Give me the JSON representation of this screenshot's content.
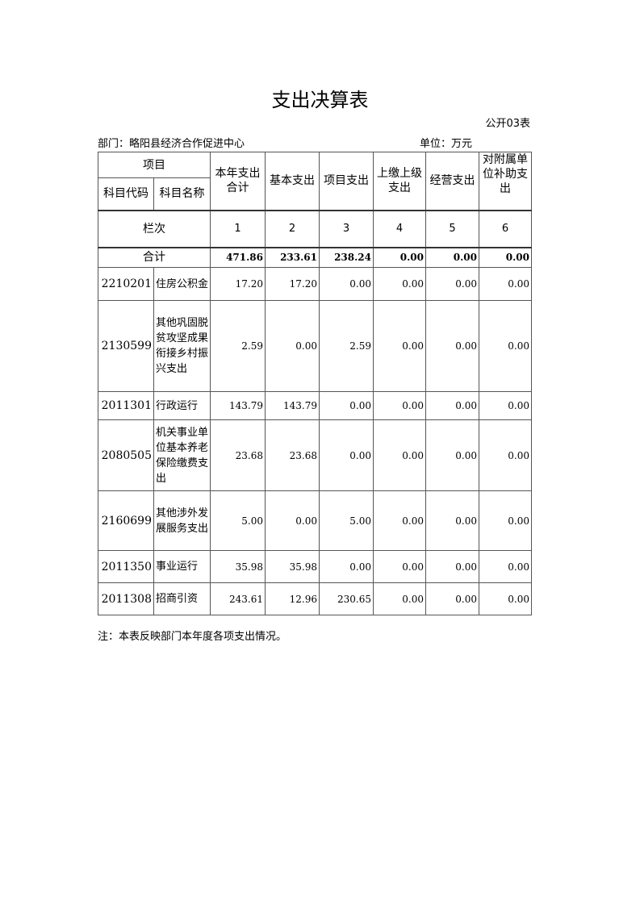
{
  "title": "支出决算表",
  "form_code": "公开03表",
  "department": "部门：略阳县经济合作促进中心",
  "unit": "单位：万元",
  "headers": {
    "item": "项目",
    "code": "科目代码",
    "name": "科目名称",
    "total": "本年支出合计",
    "basic": "基本支出",
    "project": "项目支出",
    "upper": "上缴上级支出",
    "business": "经营支出",
    "subsidy": "对附属单位补助支出"
  },
  "column_row": {
    "label": "栏次",
    "nums": [
      "1",
      "2",
      "3",
      "4",
      "5",
      "6"
    ]
  },
  "total_row": {
    "label": "合计",
    "values": [
      "471.86",
      "233.61",
      "238.24",
      "0.00",
      "0.00",
      "0.00"
    ]
  },
  "rows": [
    {
      "code": "2210201",
      "name": "住房公积金",
      "values": [
        "17.20",
        "17.20",
        "0.00",
        "0.00",
        "0.00",
        "0.00"
      ]
    },
    {
      "code": "2130599",
      "name": "其他巩固脱贫攻坚成果衔接乡村振兴支出",
      "values": [
        "2.59",
        "0.00",
        "2.59",
        "0.00",
        "0.00",
        "0.00"
      ]
    },
    {
      "code": "2011301",
      "name": "行政运行",
      "values": [
        "143.79",
        "143.79",
        "0.00",
        "0.00",
        "0.00",
        "0.00"
      ]
    },
    {
      "code": "2080505",
      "name": "机关事业单位基本养老保险缴费支出",
      "values": [
        "23.68",
        "23.68",
        "0.00",
        "0.00",
        "0.00",
        "0.00"
      ]
    },
    {
      "code": "2160699",
      "name": "其他涉外发展服务支出",
      "values": [
        "5.00",
        "0.00",
        "5.00",
        "0.00",
        "0.00",
        "0.00"
      ]
    },
    {
      "code": "2011350",
      "name": "事业运行",
      "values": [
        "35.98",
        "35.98",
        "0.00",
        "0.00",
        "0.00",
        "0.00"
      ]
    },
    {
      "code": "2011308",
      "name": "招商引资",
      "values": [
        "243.61",
        "12.96",
        "230.65",
        "0.00",
        "0.00",
        "0.00"
      ]
    }
  ],
  "note": "注：本表反映部门本年度各项支出情况。"
}
